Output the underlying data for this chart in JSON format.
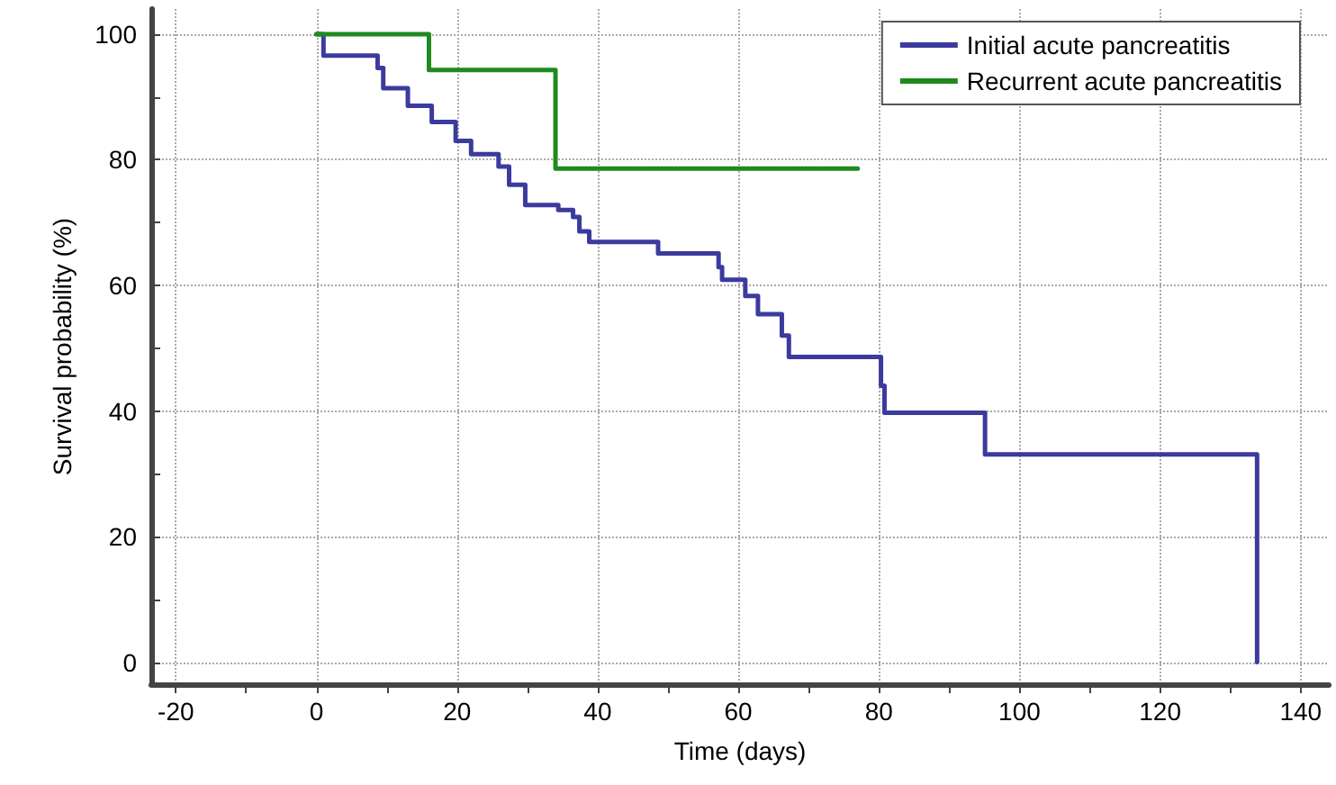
{
  "chart_data": {
    "type": "step",
    "xlabel": "Time (days)",
    "ylabel": "Survival probability (%)",
    "xlim": [
      -23.5,
      144
    ],
    "ylim": [
      -3.5,
      104
    ],
    "xticks": [
      -20,
      {
        "value": -10,
        "label": null
      },
      0,
      {
        "value": 10,
        "label": null
      },
      20,
      {
        "value": 30,
        "label": null
      },
      40,
      {
        "value": 50,
        "label": null
      },
      60,
      {
        "value": 70,
        "label": null
      },
      80,
      {
        "value": 90,
        "label": null
      },
      100,
      {
        "value": 110,
        "label": null
      },
      120,
      {
        "value": 130,
        "label": null
      },
      140
    ],
    "yticks": [
      0,
      {
        "value": 10,
        "label": null
      },
      20,
      {
        "value": 30,
        "label": null
      },
      40,
      {
        "value": 50,
        "label": null
      },
      60,
      {
        "value": 70,
        "label": null
      },
      80,
      {
        "value": 90,
        "label": null
      },
      100
    ],
    "grid": true,
    "legend": "top right",
    "marker": "none",
    "line_style": "solid",
    "series": [
      {
        "name": "Initial acute pancreatitis",
        "color": "#3b3b9e",
        "x": [
          0,
          1,
          8.7,
          9.5,
          13,
          16.4,
          19.8,
          22,
          25.9,
          27.4,
          29.7,
          34.4,
          36.5,
          37.4,
          38.8,
          48.6,
          57.2,
          57.7,
          61,
          62.8,
          66.2,
          67.2,
          80.3,
          80.8,
          95.1,
          133.8
        ],
        "values": [
          100,
          96.6,
          94.6,
          91.4,
          88.6,
          86,
          83,
          80.9,
          78.9,
          76,
          72.8,
          72,
          70.9,
          68.6,
          66.9,
          65.1,
          62.9,
          60.9,
          58.3,
          55.4,
          52,
          48.6,
          44,
          39.7,
          33.1,
          0
        ]
      },
      {
        "name": "Recurrent acute pancreatitis",
        "color": "#1f8a1f",
        "x": [
          0,
          16,
          34,
          77
        ],
        "values": [
          100,
          94.3,
          78.6,
          78.6
        ]
      }
    ]
  }
}
